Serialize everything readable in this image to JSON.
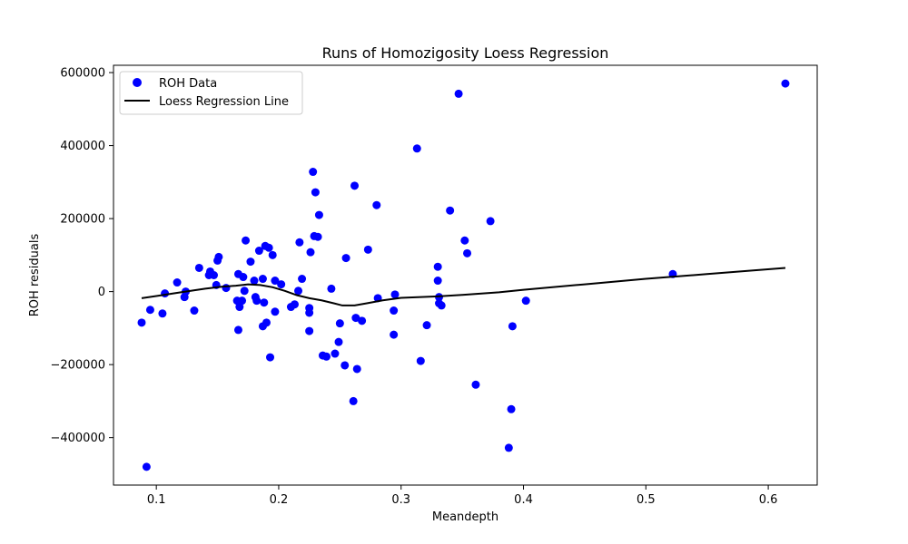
{
  "chart_data": {
    "type": "scatter",
    "title": "Runs of Homozigosity Loess Regression",
    "xlabel": "Meandepth",
    "ylabel": "ROH residuals",
    "xlim": [
      0.065,
      0.64
    ],
    "ylim": [
      -530000,
      620000
    ],
    "xticks": [
      0.1,
      0.2,
      0.3,
      0.4,
      0.5,
      0.6
    ],
    "xtick_labels": [
      "0.1",
      "0.2",
      "0.3",
      "0.4",
      "0.5",
      "0.6"
    ],
    "yticks": [
      -400000,
      -200000,
      0,
      200000,
      400000,
      600000
    ],
    "ytick_labels": [
      "−400000",
      "−200000",
      "0",
      "200000",
      "400000",
      "600000"
    ],
    "grid": false,
    "legend_position": "top-left",
    "series": [
      {
        "name": "ROH Data",
        "kind": "scatter",
        "color": "#0000ff",
        "points": [
          [
            0.088,
            -85000
          ],
          [
            0.092,
            -480000
          ],
          [
            0.095,
            -50000
          ],
          [
            0.105,
            -60000
          ],
          [
            0.107,
            -5000
          ],
          [
            0.117,
            25000
          ],
          [
            0.123,
            -15000
          ],
          [
            0.124,
            0
          ],
          [
            0.131,
            -52000
          ],
          [
            0.135,
            65000
          ],
          [
            0.143,
            45000
          ],
          [
            0.144,
            55000
          ],
          [
            0.147,
            45000
          ],
          [
            0.149,
            18000
          ],
          [
            0.15,
            85000
          ],
          [
            0.151,
            95000
          ],
          [
            0.157,
            10000
          ],
          [
            0.166,
            -25000
          ],
          [
            0.167,
            48000
          ],
          [
            0.167,
            -105000
          ],
          [
            0.168,
            -42000
          ],
          [
            0.17,
            -25000
          ],
          [
            0.171,
            40000
          ],
          [
            0.172,
            2000
          ],
          [
            0.173,
            140000
          ],
          [
            0.177,
            82000
          ],
          [
            0.18,
            30000
          ],
          [
            0.181,
            -15000
          ],
          [
            0.182,
            -25000
          ],
          [
            0.184,
            112000
          ],
          [
            0.187,
            35000
          ],
          [
            0.187,
            -95000
          ],
          [
            0.188,
            -30000
          ],
          [
            0.189,
            125000
          ],
          [
            0.19,
            -85000
          ],
          [
            0.192,
            120000
          ],
          [
            0.193,
            -180000
          ],
          [
            0.195,
            100000
          ],
          [
            0.197,
            30000
          ],
          [
            0.197,
            -55000
          ],
          [
            0.202,
            20000
          ],
          [
            0.21,
            -42000
          ],
          [
            0.213,
            -35000
          ],
          [
            0.216,
            2000
          ],
          [
            0.217,
            135000
          ],
          [
            0.219,
            35000
          ],
          [
            0.225,
            -45000
          ],
          [
            0.225,
            -58000
          ],
          [
            0.225,
            -108000
          ],
          [
            0.226,
            108000
          ],
          [
            0.228,
            328000
          ],
          [
            0.229,
            152000
          ],
          [
            0.23,
            272000
          ],
          [
            0.232,
            150000
          ],
          [
            0.233,
            210000
          ],
          [
            0.236,
            -175000
          ],
          [
            0.239,
            -178000
          ],
          [
            0.243,
            8000
          ],
          [
            0.246,
            -170000
          ],
          [
            0.249,
            -138000
          ],
          [
            0.25,
            -87000
          ],
          [
            0.254,
            -202000
          ],
          [
            0.255,
            92000
          ],
          [
            0.261,
            -300000
          ],
          [
            0.262,
            290000
          ],
          [
            0.263,
            -72000
          ],
          [
            0.264,
            -212000
          ],
          [
            0.268,
            -80000
          ],
          [
            0.273,
            115000
          ],
          [
            0.28,
            237000
          ],
          [
            0.281,
            -18000
          ],
          [
            0.294,
            -118000
          ],
          [
            0.294,
            -52000
          ],
          [
            0.295,
            -8000
          ],
          [
            0.313,
            392000
          ],
          [
            0.316,
            -190000
          ],
          [
            0.321,
            -92000
          ],
          [
            0.33,
            30000
          ],
          [
            0.33,
            68000
          ],
          [
            0.331,
            -32000
          ],
          [
            0.331,
            -15000
          ],
          [
            0.333,
            -38000
          ],
          [
            0.34,
            222000
          ],
          [
            0.347,
            542000
          ],
          [
            0.352,
            140000
          ],
          [
            0.354,
            105000
          ],
          [
            0.361,
            -255000
          ],
          [
            0.373,
            193000
          ],
          [
            0.388,
            -428000
          ],
          [
            0.39,
            -322000
          ],
          [
            0.391,
            -95000
          ],
          [
            0.402,
            -25000
          ],
          [
            0.522,
            48000
          ],
          [
            0.614,
            570000
          ]
        ]
      },
      {
        "name": "Loess Regression Line",
        "kind": "line",
        "color": "#000000",
        "points": [
          [
            0.088,
            -18000
          ],
          [
            0.1,
            -12000
          ],
          [
            0.12,
            -2000
          ],
          [
            0.14,
            8000
          ],
          [
            0.155,
            14000
          ],
          [
            0.165,
            16000
          ],
          [
            0.175,
            20000
          ],
          [
            0.185,
            18000
          ],
          [
            0.195,
            12000
          ],
          [
            0.205,
            2000
          ],
          [
            0.215,
            -10000
          ],
          [
            0.225,
            -18000
          ],
          [
            0.235,
            -24000
          ],
          [
            0.245,
            -32000
          ],
          [
            0.252,
            -38000
          ],
          [
            0.262,
            -38000
          ],
          [
            0.272,
            -32000
          ],
          [
            0.285,
            -24000
          ],
          [
            0.3,
            -17000
          ],
          [
            0.33,
            -13000
          ],
          [
            0.35,
            -9000
          ],
          [
            0.38,
            -2000
          ],
          [
            0.4,
            5000
          ],
          [
            0.45,
            20000
          ],
          [
            0.5,
            35000
          ],
          [
            0.55,
            48000
          ],
          [
            0.614,
            65000
          ]
        ]
      }
    ]
  }
}
